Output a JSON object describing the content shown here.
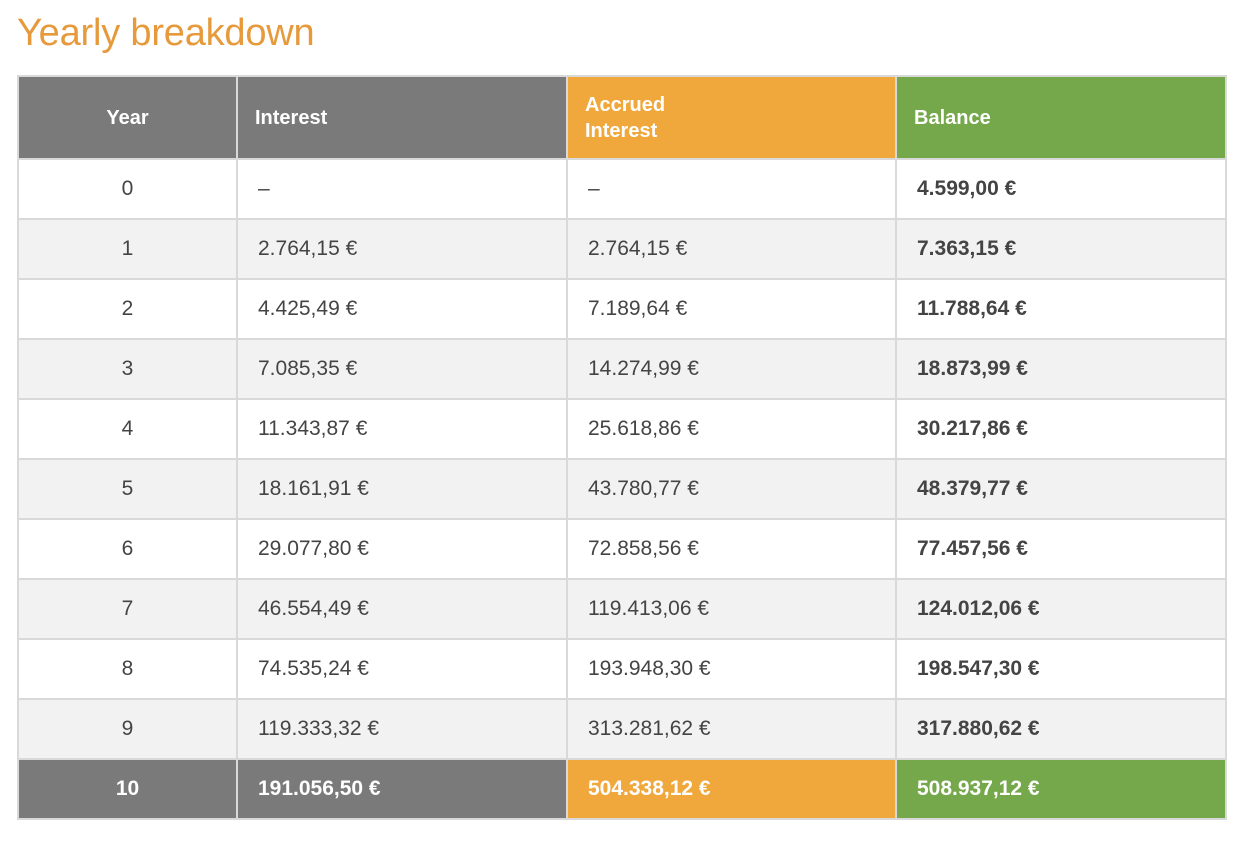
{
  "title": "Yearly breakdown",
  "colors": {
    "title": "#e69a3c",
    "header_gray": "#7a7a7a",
    "accent_orange": "#f0a83c",
    "accent_green": "#75a84a"
  },
  "table": {
    "headers": {
      "year": "Year",
      "interest": "Interest",
      "accrued_line1": "Accrued",
      "accrued_line2": "Interest",
      "balance": "Balance"
    },
    "rows": [
      {
        "year": "0",
        "interest": "–",
        "accrued": "–",
        "balance": "4.599,00 €"
      },
      {
        "year": "1",
        "interest": "2.764,15 €",
        "accrued": "2.764,15 €",
        "balance": "7.363,15 €"
      },
      {
        "year": "2",
        "interest": "4.425,49 €",
        "accrued": "7.189,64 €",
        "balance": "11.788,64 €"
      },
      {
        "year": "3",
        "interest": "7.085,35 €",
        "accrued": "14.274,99 €",
        "balance": "18.873,99 €"
      },
      {
        "year": "4",
        "interest": "11.343,87 €",
        "accrued": "25.618,86 €",
        "balance": "30.217,86 €"
      },
      {
        "year": "5",
        "interest": "18.161,91 €",
        "accrued": "43.780,77 €",
        "balance": "48.379,77 €"
      },
      {
        "year": "6",
        "interest": "29.077,80 €",
        "accrued": "72.858,56 €",
        "balance": "77.457,56 €"
      },
      {
        "year": "7",
        "interest": "46.554,49 €",
        "accrued": "119.413,06 €",
        "balance": "124.012,06 €"
      },
      {
        "year": "8",
        "interest": "74.535,24 €",
        "accrued": "193.948,30 €",
        "balance": "198.547,30 €"
      },
      {
        "year": "9",
        "interest": "119.333,32 €",
        "accrued": "313.281,62 €",
        "balance": "317.880,62 €"
      }
    ],
    "final": {
      "year": "10",
      "interest": "191.056,50 €",
      "accrued": "504.338,12 €",
      "balance": "508.937,12 €"
    }
  }
}
